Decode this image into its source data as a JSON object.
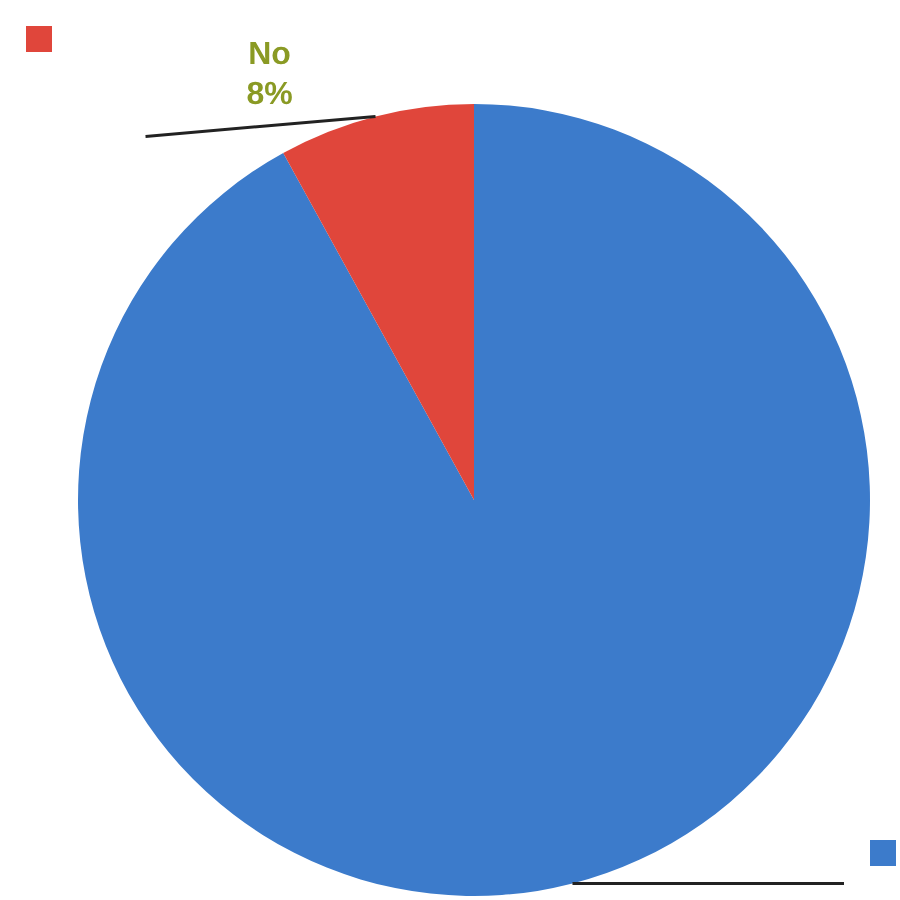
{
  "chart_data": {
    "type": "pie",
    "categories": [
      null,
      "No"
    ],
    "values": [
      92,
      8
    ],
    "colors": [
      "#3c7bcb",
      "#e0463b"
    ],
    "value_labels": [
      null,
      "8%"
    ]
  }
}
